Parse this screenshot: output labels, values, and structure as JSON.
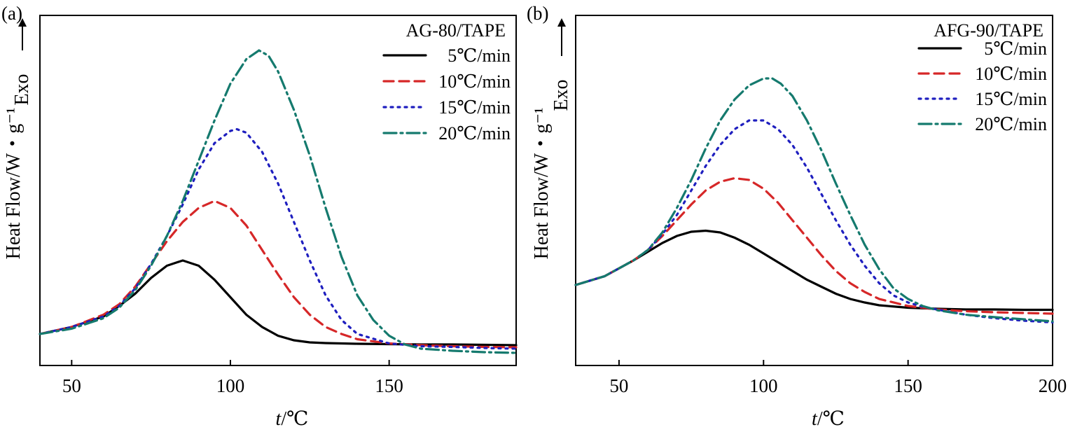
{
  "chart_data": [
    {
      "type": "line",
      "panel_label": "(a)",
      "title": "AG-80/TAPE",
      "xlabel": "t/℃",
      "ylabel": "Heat Flow/W・g⁻¹",
      "exo_label": "Exo",
      "xlim": [
        40,
        190
      ],
      "ylim": [
        0,
        1
      ],
      "xticks": [
        50,
        100,
        150
      ],
      "grid": false,
      "legend_position": "top-right",
      "series": [
        {
          "name": "5℃/min",
          "color": "#000000",
          "dash": "solid",
          "x": [
            40,
            50,
            60,
            65,
            70,
            75,
            80,
            85,
            90,
            95,
            100,
            105,
            110,
            115,
            120,
            125,
            130,
            135,
            140,
            150,
            160,
            170,
            180,
            190
          ],
          "y": [
            0.09,
            0.11,
            0.14,
            0.17,
            0.205,
            0.25,
            0.285,
            0.3,
            0.285,
            0.245,
            0.195,
            0.145,
            0.11,
            0.085,
            0.072,
            0.066,
            0.064,
            0.063,
            0.062,
            0.061,
            0.06,
            0.06,
            0.059,
            0.058
          ]
        },
        {
          "name": "10℃/min",
          "color": "#d62728",
          "dash": "dashed",
          "x": [
            40,
            50,
            60,
            65,
            70,
            75,
            80,
            85,
            90,
            95,
            100,
            105,
            110,
            115,
            120,
            125,
            130,
            135,
            140,
            150,
            160,
            170,
            180,
            190
          ],
          "y": [
            0.09,
            0.11,
            0.145,
            0.175,
            0.225,
            0.29,
            0.355,
            0.41,
            0.45,
            0.47,
            0.45,
            0.4,
            0.33,
            0.26,
            0.195,
            0.145,
            0.11,
            0.09,
            0.075,
            0.063,
            0.058,
            0.055,
            0.053,
            0.052
          ]
        },
        {
          "name": "15℃/min",
          "color": "#1f1fbf",
          "dash": "dotted",
          "x": [
            40,
            50,
            60,
            65,
            70,
            75,
            80,
            85,
            90,
            95,
            100,
            102,
            105,
            110,
            115,
            120,
            125,
            130,
            135,
            140,
            150,
            160,
            170,
            180,
            190
          ],
          "y": [
            0.09,
            0.11,
            0.14,
            0.17,
            0.22,
            0.29,
            0.37,
            0.46,
            0.56,
            0.635,
            0.67,
            0.675,
            0.665,
            0.61,
            0.52,
            0.41,
            0.3,
            0.2,
            0.13,
            0.09,
            0.063,
            0.055,
            0.053,
            0.05,
            0.048
          ]
        },
        {
          "name": "20℃/min",
          "color": "#157a6e",
          "dash": "dashdot",
          "x": [
            40,
            50,
            60,
            65,
            70,
            75,
            80,
            85,
            90,
            95,
            100,
            105,
            109,
            112,
            115,
            120,
            125,
            130,
            135,
            140,
            145,
            150,
            155,
            160,
            170,
            180,
            190
          ],
          "y": [
            0.09,
            0.105,
            0.135,
            0.165,
            0.215,
            0.285,
            0.37,
            0.47,
            0.585,
            0.7,
            0.805,
            0.875,
            0.9,
            0.885,
            0.84,
            0.73,
            0.6,
            0.45,
            0.31,
            0.2,
            0.13,
            0.085,
            0.06,
            0.048,
            0.042,
            0.038,
            0.036
          ]
        }
      ]
    },
    {
      "type": "line",
      "panel_label": "(b)",
      "title": "AFG-90/TAPE",
      "xlabel": "t/℃",
      "ylabel": "Heat Flow/W・g⁻¹",
      "exo_label": "Exo",
      "xlim": [
        35,
        200
      ],
      "ylim": [
        0,
        1
      ],
      "xticks": [
        50,
        100,
        150,
        200
      ],
      "grid": false,
      "legend_position": "top-right",
      "series": [
        {
          "name": "5℃/min",
          "color": "#000000",
          "dash": "solid",
          "x": [
            35,
            45,
            55,
            60,
            65,
            70,
            75,
            80,
            85,
            90,
            95,
            100,
            105,
            110,
            115,
            120,
            125,
            130,
            135,
            140,
            150,
            160,
            170,
            180,
            190,
            200
          ],
          "y": [
            0.23,
            0.255,
            0.3,
            0.325,
            0.35,
            0.37,
            0.382,
            0.385,
            0.38,
            0.365,
            0.345,
            0.32,
            0.295,
            0.27,
            0.245,
            0.225,
            0.205,
            0.19,
            0.18,
            0.172,
            0.165,
            0.162,
            0.16,
            0.16,
            0.159,
            0.159
          ]
        },
        {
          "name": "10℃/min",
          "color": "#d62728",
          "dash": "dashed",
          "x": [
            35,
            45,
            55,
            60,
            65,
            70,
            75,
            80,
            85,
            90,
            95,
            100,
            105,
            110,
            115,
            120,
            125,
            130,
            135,
            140,
            150,
            160,
            170,
            180,
            190,
            200
          ],
          "y": [
            0.23,
            0.255,
            0.3,
            0.33,
            0.37,
            0.415,
            0.46,
            0.5,
            0.525,
            0.535,
            0.53,
            0.505,
            0.465,
            0.415,
            0.365,
            0.315,
            0.27,
            0.235,
            0.21,
            0.19,
            0.17,
            0.16,
            0.155,
            0.152,
            0.15,
            0.148
          ]
        },
        {
          "name": "15℃/min",
          "color": "#1f1fbf",
          "dash": "dotted",
          "x": [
            35,
            45,
            55,
            60,
            65,
            70,
            75,
            80,
            85,
            90,
            95,
            100,
            105,
            110,
            115,
            120,
            125,
            130,
            135,
            140,
            145,
            150,
            155,
            160,
            170,
            180,
            190,
            200
          ],
          "y": [
            0.23,
            0.255,
            0.3,
            0.33,
            0.375,
            0.43,
            0.5,
            0.57,
            0.63,
            0.675,
            0.7,
            0.7,
            0.675,
            0.63,
            0.565,
            0.49,
            0.415,
            0.345,
            0.285,
            0.235,
            0.2,
            0.18,
            0.168,
            0.16,
            0.145,
            0.135,
            0.128,
            0.123
          ]
        },
        {
          "name": "20℃/min",
          "color": "#157a6e",
          "dash": "dashdot",
          "x": [
            35,
            45,
            55,
            60,
            65,
            70,
            75,
            80,
            85,
            90,
            95,
            100,
            103,
            106,
            110,
            115,
            120,
            125,
            130,
            135,
            140,
            145,
            150,
            155,
            160,
            170,
            180,
            190,
            200
          ],
          "y": [
            0.23,
            0.255,
            0.3,
            0.33,
            0.38,
            0.45,
            0.53,
            0.62,
            0.7,
            0.76,
            0.8,
            0.82,
            0.82,
            0.805,
            0.77,
            0.7,
            0.615,
            0.52,
            0.43,
            0.345,
            0.275,
            0.22,
            0.19,
            0.17,
            0.158,
            0.145,
            0.138,
            0.132,
            0.126
          ]
        }
      ]
    }
  ]
}
